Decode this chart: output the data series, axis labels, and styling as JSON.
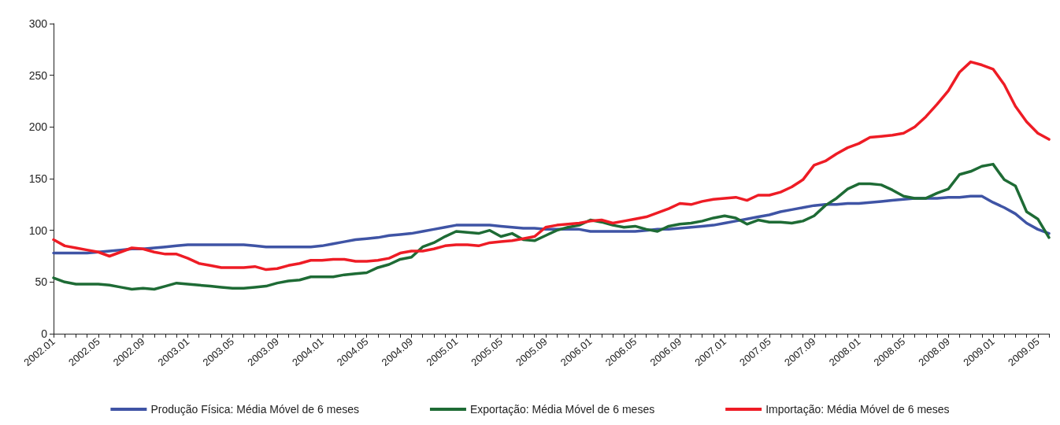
{
  "chart_data": {
    "type": "line",
    "categories": [
      "2002.01",
      null,
      null,
      null,
      "2002.05",
      null,
      null,
      null,
      "2002.09",
      null,
      null,
      null,
      "2003.01",
      null,
      null,
      null,
      "2003.05",
      null,
      null,
      null,
      "2003.09",
      null,
      null,
      null,
      "2004.01",
      null,
      null,
      null,
      "2004.05",
      null,
      null,
      null,
      "2004.09",
      null,
      null,
      null,
      "2005.01",
      null,
      null,
      null,
      "2005.05",
      null,
      null,
      null,
      "2005.09",
      null,
      null,
      null,
      "2006.01",
      null,
      null,
      null,
      "2006.05",
      null,
      null,
      null,
      "2006.09",
      null,
      null,
      null,
      "2007.01",
      null,
      null,
      null,
      "2007.05",
      null,
      null,
      null,
      "2007.09",
      null,
      null,
      null,
      "2008.01",
      null,
      null,
      null,
      "2008.05",
      null,
      null,
      null,
      "2008.09",
      null,
      null,
      null,
      "2009.01",
      null,
      null,
      null,
      "2009.05",
      null
    ],
    "series": [
      {
        "name": "Produção Física: Média Móvel de 6 meses",
        "color": "#3f54a5",
        "values": [
          78,
          78,
          78,
          78,
          79,
          80,
          81,
          82,
          82,
          83,
          84,
          85,
          86,
          86,
          86,
          86,
          86,
          86,
          85,
          84,
          84,
          84,
          84,
          84,
          85,
          87,
          89,
          91,
          92,
          93,
          95,
          96,
          97,
          99,
          101,
          103,
          105,
          105,
          105,
          105,
          104,
          103,
          102,
          102,
          101,
          101,
          101,
          101,
          99,
          99,
          99,
          99,
          99,
          100,
          101,
          101,
          102,
          103,
          104,
          105,
          107,
          109,
          111,
          113,
          115,
          118,
          120,
          122,
          124,
          125,
          125,
          126,
          126,
          127,
          128,
          129,
          130,
          131,
          131,
          131,
          132,
          132,
          133,
          133,
          127,
          122,
          116,
          107,
          101,
          97
        ]
      },
      {
        "name": "Exportação: Média Móvel de 6 meses",
        "color": "#1e6b35",
        "values": [
          54,
          50,
          48,
          48,
          48,
          47,
          45,
          43,
          44,
          43,
          46,
          49,
          48,
          47,
          46,
          45,
          44,
          44,
          45,
          46,
          49,
          51,
          52,
          55,
          55,
          55,
          57,
          58,
          59,
          64,
          67,
          72,
          74,
          84,
          88,
          94,
          99,
          98,
          97,
          100,
          94,
          97,
          91,
          90,
          95,
          100,
          103,
          105,
          110,
          108,
          105,
          103,
          104,
          101,
          99,
          104,
          106,
          107,
          109,
          112,
          114,
          112,
          106,
          110,
          108,
          108,
          107,
          109,
          114,
          124,
          131,
          140,
          145,
          145,
          144,
          139,
          133,
          131,
          131,
          136,
          140,
          154,
          157,
          162,
          164,
          149,
          143,
          118,
          111,
          93
        ]
      },
      {
        "name": "Importação: Média Móvel de 6 meses",
        "color": "#ee1c25",
        "values": [
          91,
          85,
          83,
          81,
          79,
          75,
          79,
          83,
          82,
          79,
          77,
          77,
          73,
          68,
          66,
          64,
          64,
          64,
          65,
          62,
          63,
          66,
          68,
          71,
          71,
          72,
          72,
          70,
          70,
          71,
          73,
          78,
          80,
          80,
          82,
          85,
          86,
          86,
          85,
          88,
          89,
          90,
          92,
          94,
          103,
          105,
          106,
          107,
          109,
          110,
          107,
          109,
          111,
          113,
          117,
          121,
          126,
          125,
          128,
          130,
          131,
          132,
          129,
          134,
          134,
          137,
          142,
          149,
          163,
          167,
          174,
          180,
          184,
          190,
          191,
          192,
          194,
          200,
          210,
          222,
          235,
          253,
          263,
          260,
          256,
          241,
          220,
          205,
          194,
          188
        ]
      }
    ],
    "ylim": [
      0,
      300
    ],
    "yticks": [
      0,
      50,
      100,
      150,
      200,
      250,
      300
    ],
    "grid": false,
    "legend": "bottom",
    "marker": "none",
    "line_style": "solid"
  }
}
